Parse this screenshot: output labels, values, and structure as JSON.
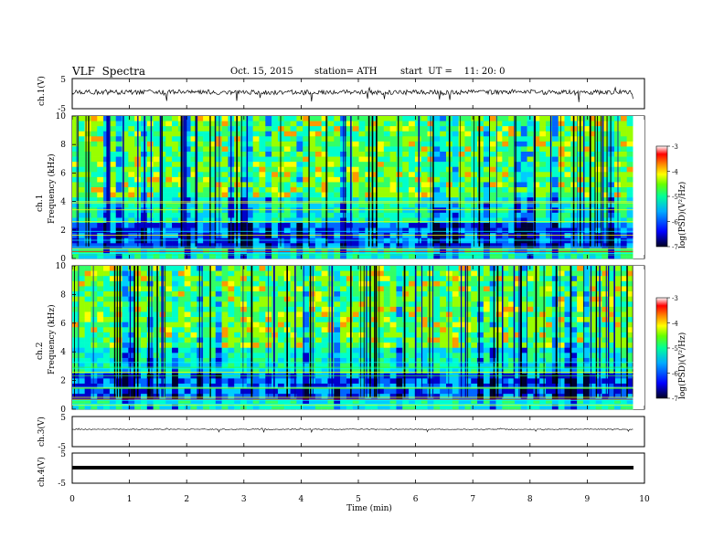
{
  "header": {
    "title": "VLF  Spectra",
    "date": "Oct. 15, 2015",
    "station": "station= ATH",
    "start": "start  UT =    11: 20: 0"
  },
  "colors": {
    "scale": [
      "#000033",
      "#0000ff",
      "#00aaff",
      "#00ffcc",
      "#33ff33",
      "#ffff00",
      "#ff8800",
      "#ff0000",
      "#ffffff"
    ]
  },
  "chart_data": [
    {
      "type": "line",
      "name": "ch1-waveform",
      "ylabel": "ch.1(V)",
      "ylim": [
        -5,
        5
      ],
      "y_ticks": [
        "5",
        "-5"
      ],
      "x": [
        0,
        10
      ],
      "baseline": 0,
      "envelope": [
        -1.2,
        1.2
      ],
      "xlim": [
        0,
        10
      ]
    },
    {
      "type": "heatmap",
      "name": "ch1-spectrogram",
      "ylabel": "ch.1\nFrequency  (kHz)",
      "ylabel_channel": "ch.1",
      "ylabel_freq": "Frequency  (kHz)",
      "ylim": [
        0,
        10
      ],
      "xlim": [
        0,
        9.8
      ],
      "y_ticks": [
        "0",
        "2",
        "4",
        "6",
        "8",
        "10"
      ],
      "colorbar": {
        "label": "log(PSD)(V²/Hz)",
        "range": [
          -7,
          -3
        ],
        "ticks": [
          "-3",
          "-4",
          "-5",
          "-6",
          "-7"
        ]
      }
    },
    {
      "type": "heatmap",
      "name": "ch2-spectrogram",
      "ylabel_channel": "ch.2",
      "ylabel_freq": "Frequency  (kHz)",
      "ylim": [
        0,
        10
      ],
      "xlim": [
        0,
        9.8
      ],
      "y_ticks": [
        "0",
        "2",
        "4",
        "6",
        "8",
        "10"
      ],
      "colorbar": {
        "label": "log(PSD)(V²/Hz)",
        "range": [
          -7,
          -3
        ],
        "ticks": [
          "-3",
          "-4",
          "-5",
          "-6",
          "-7"
        ]
      }
    },
    {
      "type": "line",
      "name": "ch3-waveform",
      "ylabel": "ch.3(V)",
      "ylim": [
        -5,
        5
      ],
      "y_ticks": [
        "5",
        "-5"
      ],
      "baseline": 0,
      "xlim": [
        0,
        9.8
      ]
    },
    {
      "type": "line",
      "name": "ch4-waveform",
      "ylabel": "ch.4(V)",
      "ylim": [
        -5,
        5
      ],
      "y_ticks": [
        "5",
        "-5"
      ],
      "baseline": 0,
      "xlim": [
        0,
        9.8
      ]
    }
  ],
  "xaxis": {
    "label": "Time  (min)",
    "ticks": [
      "0",
      "1",
      "2",
      "3",
      "4",
      "5",
      "6",
      "7",
      "8",
      "9",
      "10"
    ],
    "range": [
      0,
      10
    ]
  }
}
